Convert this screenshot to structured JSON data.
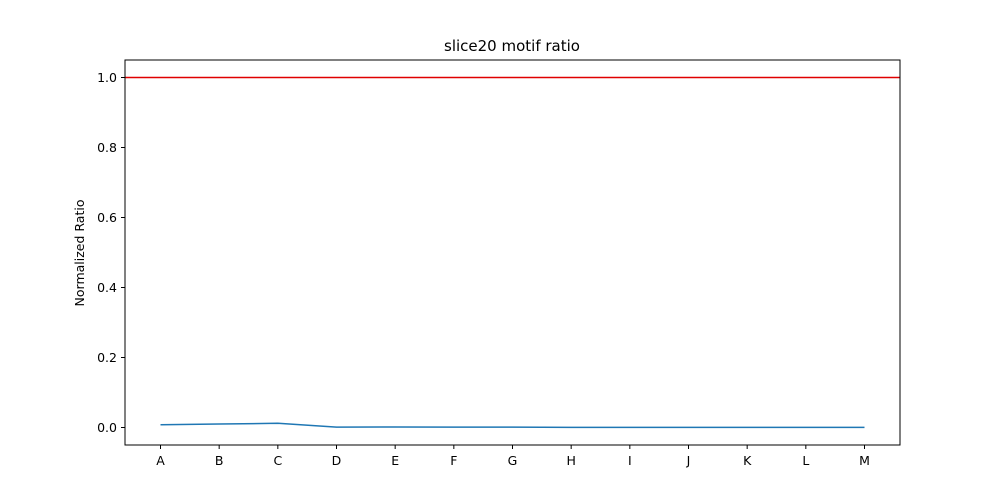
{
  "chart_data": {
    "type": "line",
    "title": "slice20 motif ratio",
    "xlabel": "",
    "ylabel": "Normalized Ratio",
    "categories": [
      "A",
      "B",
      "C",
      "D",
      "E",
      "F",
      "G",
      "H",
      "I",
      "J",
      "K",
      "L",
      "M"
    ],
    "series": [
      {
        "color": "#1f77b4",
        "values": [
          0.008,
          0.01,
          0.012,
          0.001,
          0.0015,
          0.001,
          0.001,
          0.0005,
          0.0005,
          0.0005,
          0.0005,
          0.0005,
          0.0005
        ]
      }
    ],
    "reference_line": {
      "y": 1.0,
      "color": "#e00000"
    },
    "ylim": [
      -0.05,
      1.05
    ],
    "yticks": [
      0.0,
      0.2,
      0.4,
      0.6,
      0.8,
      1.0
    ],
    "ytick_labels": [
      "0.0",
      "0.2",
      "0.4",
      "0.6",
      "0.8",
      "1.0"
    ],
    "grid": false,
    "legend": "none"
  }
}
